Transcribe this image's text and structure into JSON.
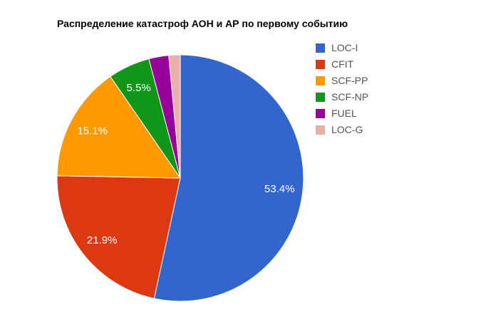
{
  "chart_data": {
    "type": "pie",
    "title": "Распределение катастроф АОН и АР по первому событию",
    "legend_position": "right",
    "start_angle_deg": 0,
    "direction": "clockwise",
    "background_color": "#FFFFFF",
    "slice_label_color": "#FFFFFF",
    "legend_text_color": "#545454",
    "slices": [
      {
        "label": "LOC-I",
        "value": 53.4,
        "display": "53.4%",
        "color": "#3366CC"
      },
      {
        "label": "CFIT",
        "value": 21.9,
        "display": "21.9%",
        "color": "#DC3912"
      },
      {
        "label": "SCF-PP",
        "value": 15.1,
        "display": "15.1%",
        "color": "#FF9900"
      },
      {
        "label": "SCF-NP",
        "value": 5.5,
        "display": "5.5%",
        "color": "#109618"
      },
      {
        "label": "FUEL",
        "value": 2.6,
        "display": "",
        "color": "#990099"
      },
      {
        "label": "LOC-G",
        "value": 1.5,
        "display": "",
        "color": "#E8B0A8"
      }
    ]
  }
}
